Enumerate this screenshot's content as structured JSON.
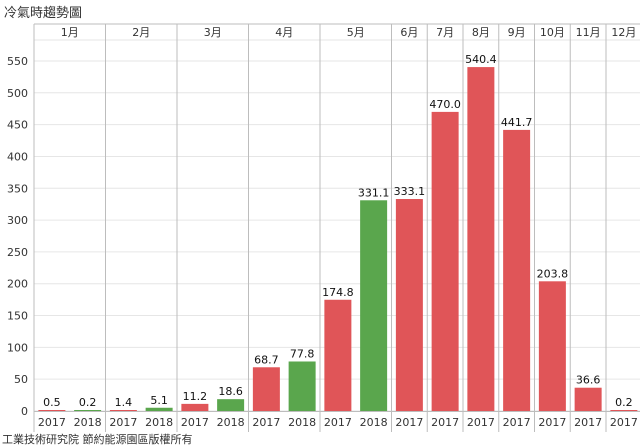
{
  "title": "冷氣時趨勢圖",
  "footer": "工業技術研究院 節約能源園區版權所有",
  "colors": {
    "year_2017": "#e05558",
    "year_2018": "#5aa64d",
    "grid": "#e6e6e6",
    "axis": "#bdbdbd"
  },
  "chart_data": {
    "type": "bar",
    "title": "冷氣時趨勢圖",
    "xlabel": "",
    "ylabel": "",
    "ylim": [
      0,
      570
    ],
    "yticks": [
      0,
      50,
      100,
      150,
      200,
      250,
      300,
      350,
      400,
      450,
      500,
      550
    ],
    "grid": true,
    "months": [
      {
        "label": "1月",
        "bars": [
          {
            "year": "2017",
            "value": 0.5
          },
          {
            "year": "2018",
            "value": 0.2
          }
        ]
      },
      {
        "label": "2月",
        "bars": [
          {
            "year": "2017",
            "value": 1.4
          },
          {
            "year": "2018",
            "value": 5.1
          }
        ]
      },
      {
        "label": "3月",
        "bars": [
          {
            "year": "2017",
            "value": 11.2
          },
          {
            "year": "2018",
            "value": 18.6
          }
        ]
      },
      {
        "label": "4月",
        "bars": [
          {
            "year": "2017",
            "value": 68.7
          },
          {
            "year": "2018",
            "value": 77.8
          }
        ]
      },
      {
        "label": "5月",
        "bars": [
          {
            "year": "2017",
            "value": 174.8
          },
          {
            "year": "2018",
            "value": 331.1
          }
        ]
      },
      {
        "label": "6月",
        "bars": [
          {
            "year": "2017",
            "value": 333.1
          }
        ]
      },
      {
        "label": "7月",
        "bars": [
          {
            "year": "2017",
            "value": 470.0
          }
        ]
      },
      {
        "label": "8月",
        "bars": [
          {
            "year": "2017",
            "value": 540.4
          }
        ]
      },
      {
        "label": "9月",
        "bars": [
          {
            "year": "2017",
            "value": 441.7
          }
        ]
      },
      {
        "label": "10月",
        "bars": [
          {
            "year": "2017",
            "value": 203.8
          }
        ]
      },
      {
        "label": "11月",
        "bars": [
          {
            "year": "2017",
            "value": 36.6
          }
        ]
      },
      {
        "label": "12月",
        "bars": [
          {
            "year": "2017",
            "value": 0.2
          }
        ]
      }
    ]
  }
}
